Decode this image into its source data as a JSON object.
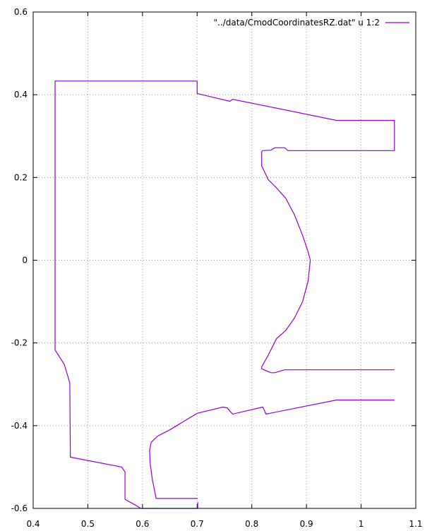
{
  "chart_data": {
    "type": "line",
    "xlim": [
      0.4,
      1.1
    ],
    "ylim": [
      -0.6,
      0.6
    ],
    "x_ticks": [
      "0.4",
      "0.5",
      "0.6",
      "0.7",
      "0.8",
      "0.9",
      "1",
      "1.1"
    ],
    "y_ticks": [
      "-0.6",
      "-0.4",
      "-0.2",
      "0",
      "0.2",
      "0.4",
      "0.6"
    ],
    "grid": true,
    "legend_position": "top-right",
    "series_color": "#9400d3",
    "series": [
      {
        "name": "\"../data/CmodCoordinatesRZ.dat\" u 1:2",
        "segments": [
          {
            "x": [
              0.7,
              0.44,
              0.44,
              0.457,
              0.467,
              0.468,
              0.562,
              0.568,
              0.568,
              0.587,
              0.597,
              0.701,
              0.701
            ],
            "y": [
              0.433,
              0.433,
              -0.217,
              -0.252,
              -0.297,
              -0.476,
              -0.5,
              -0.512,
              -0.578,
              -0.592,
              -0.6,
              -0.6,
              -0.585
            ]
          },
          {
            "x": [
              0.701,
              0.625,
              0.618,
              0.614,
              0.613,
              0.616,
              0.628,
              0.65,
              0.7,
              0.747,
              0.755,
              0.76,
              0.765,
              0.82,
              0.822,
              0.826,
              0.955,
              1.061
            ],
            "y": [
              -0.576,
              -0.576,
              -0.53,
              -0.49,
              -0.46,
              -0.44,
              -0.425,
              -0.41,
              -0.37,
              -0.355,
              -0.357,
              -0.365,
              -0.372,
              -0.355,
              -0.36,
              -0.372,
              -0.338,
              -0.338
            ]
          },
          {
            "x": [
              0.7,
              0.7,
              0.76,
              0.765,
              0.955,
              1.061,
              1.061,
              0.866,
              0.86,
              0.842,
              0.835,
              0.82,
              0.818,
              0.818,
              0.83,
              0.845,
              0.862,
              0.878,
              0.893,
              0.903,
              0.907,
              0.903,
              0.893,
              0.878,
              0.862,
              0.845,
              0.83,
              0.818,
              0.818,
              0.822,
              0.835,
              0.842,
              0.86,
              0.866,
              1.061
            ],
            "y": [
              0.433,
              0.403,
              0.384,
              0.389,
              0.338,
              0.338,
              0.265,
              0.265,
              0.272,
              0.272,
              0.266,
              0.265,
              0.262,
              0.228,
              0.195,
              0.175,
              0.15,
              0.11,
              0.06,
              0.02,
              0.0,
              -0.05,
              -0.1,
              -0.14,
              -0.17,
              -0.19,
              -0.23,
              -0.258,
              -0.262,
              -0.265,
              -0.272,
              -0.272,
              -0.265,
              -0.265,
              -0.265
            ]
          }
        ]
      }
    ]
  }
}
